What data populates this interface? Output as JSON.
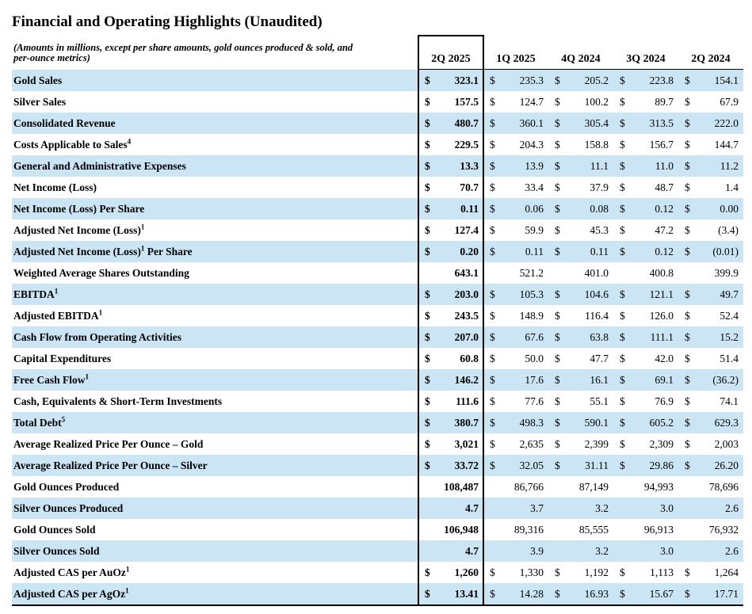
{
  "title": "Financial and Operating Highlights (Unaudited)",
  "note": {
    "line1": "(Amounts in millions, except per share amounts, gold ounces produced & sold, and",
    "line2": "per-ounce metrics)"
  },
  "columns": [
    "2Q 2025",
    "1Q 2025",
    "4Q 2024",
    "3Q 2024",
    "2Q 2024"
  ],
  "colors": {
    "stripe": "#CBE5F5",
    "border": "#000000"
  },
  "rows": [
    {
      "prefix": "Gold Sales",
      "sup": "",
      "suffix": "",
      "dollar": true,
      "values": [
        "323.1",
        "235.3",
        "205.2",
        "223.8",
        "154.1"
      ]
    },
    {
      "prefix": "Silver Sales",
      "sup": "",
      "suffix": "",
      "dollar": true,
      "values": [
        "157.5",
        "124.7",
        "100.2",
        "89.7",
        "67.9"
      ]
    },
    {
      "prefix": "Consolidated Revenue",
      "sup": "",
      "suffix": "",
      "dollar": true,
      "values": [
        "480.7",
        "360.1",
        "305.4",
        "313.5",
        "222.0"
      ]
    },
    {
      "prefix": "Costs Applicable to Sales",
      "sup": "4",
      "suffix": "",
      "dollar": true,
      "values": [
        "229.5",
        "204.3",
        "158.8",
        "156.7",
        "144.7"
      ]
    },
    {
      "prefix": "General and Administrative Expenses",
      "sup": "",
      "suffix": "",
      "dollar": true,
      "values": [
        "13.3",
        "13.9",
        "11.1",
        "11.0",
        "11.2"
      ]
    },
    {
      "prefix": "Net Income (Loss)",
      "sup": "",
      "suffix": "",
      "dollar": true,
      "values": [
        "70.7",
        "33.4",
        "37.9",
        "48.7",
        "1.4"
      ]
    },
    {
      "prefix": "Net Income (Loss) Per Share",
      "sup": "",
      "suffix": "",
      "dollar": true,
      "values": [
        "0.11",
        "0.06",
        "0.08",
        "0.12",
        "0.00"
      ]
    },
    {
      "prefix": "Adjusted Net Income (Loss)",
      "sup": "1",
      "suffix": "",
      "dollar": true,
      "values": [
        "127.4",
        "59.9",
        "45.3",
        "47.2",
        "(3.4)"
      ]
    },
    {
      "prefix": "Adjusted Net Income (Loss)",
      "sup": "1",
      "suffix": " Per Share",
      "dollar": true,
      "values": [
        "0.20",
        "0.11",
        "0.11",
        "0.12",
        "(0.01)"
      ]
    },
    {
      "prefix": "Weighted Average Shares Outstanding",
      "sup": "",
      "suffix": "",
      "dollar": false,
      "values": [
        "643.1",
        "521.2",
        "401.0",
        "400.8",
        "399.9"
      ]
    },
    {
      "prefix": "EBITDA",
      "sup": "1",
      "suffix": "",
      "dollar": true,
      "values": [
        "203.0",
        "105.3",
        "104.6",
        "121.1",
        "49.7"
      ]
    },
    {
      "prefix": "Adjusted EBITDA",
      "sup": "1",
      "suffix": "",
      "dollar": true,
      "values": [
        "243.5",
        "148.9",
        "116.4",
        "126.0",
        "52.4"
      ]
    },
    {
      "prefix": "Cash Flow from Operating Activities",
      "sup": "",
      "suffix": "",
      "dollar": true,
      "values": [
        "207.0",
        "67.6",
        "63.8",
        "111.1",
        "15.2"
      ]
    },
    {
      "prefix": "Capital Expenditures",
      "sup": "",
      "suffix": "",
      "dollar": true,
      "values": [
        "60.8",
        "50.0",
        "47.7",
        "42.0",
        "51.4"
      ]
    },
    {
      "prefix": "Free Cash Flow",
      "sup": "1",
      "suffix": "",
      "dollar": true,
      "values": [
        "146.2",
        "17.6",
        "16.1",
        "69.1",
        "(36.2)"
      ]
    },
    {
      "prefix": "Cash, Equivalents & Short-Term Investments",
      "sup": "",
      "suffix": "",
      "dollar": true,
      "values": [
        "111.6",
        "77.6",
        "55.1",
        "76.9",
        "74.1"
      ]
    },
    {
      "prefix": "Total Debt",
      "sup": "5",
      "suffix": "",
      "dollar": true,
      "values": [
        "380.7",
        "498.3",
        "590.1",
        "605.2",
        "629.3"
      ]
    },
    {
      "prefix": "Average Realized Price Per Ounce – Gold",
      "sup": "",
      "suffix": "",
      "dollar": true,
      "values": [
        "3,021",
        "2,635",
        "2,399",
        "2,309",
        "2,003"
      ]
    },
    {
      "prefix": "Average Realized Price Per Ounce – Silver",
      "sup": "",
      "suffix": "",
      "dollar": true,
      "values": [
        "33.72",
        "32.05",
        "31.11",
        "29.86",
        "26.20"
      ]
    },
    {
      "prefix": "Gold Ounces Produced",
      "sup": "",
      "suffix": "",
      "dollar": false,
      "values": [
        "108,487",
        "86,766",
        "87,149",
        "94,993",
        "78,696"
      ]
    },
    {
      "prefix": "Silver Ounces Produced",
      "sup": "",
      "suffix": "",
      "dollar": false,
      "values": [
        "4.7",
        "3.7",
        "3.2",
        "3.0",
        "2.6"
      ]
    },
    {
      "prefix": "Gold Ounces Sold",
      "sup": "",
      "suffix": "",
      "dollar": false,
      "values": [
        "106,948",
        "89,316",
        "85,555",
        "96,913",
        "76,932"
      ]
    },
    {
      "prefix": "Silver Ounces Sold",
      "sup": "",
      "suffix": "",
      "dollar": false,
      "values": [
        "4.7",
        "3.9",
        "3.2",
        "3.0",
        "2.6"
      ]
    },
    {
      "prefix": "Adjusted CAS per AuOz",
      "sup": "1",
      "suffix": "",
      "dollar": true,
      "values": [
        "1,260",
        "1,330",
        "1,192",
        "1,113",
        "1,264"
      ]
    },
    {
      "prefix": "Adjusted CAS per AgOz",
      "sup": "1",
      "suffix": "",
      "dollar": true,
      "values": [
        "13.41",
        "14.28",
        "16.93",
        "15.67",
        "17.71"
      ]
    }
  ]
}
